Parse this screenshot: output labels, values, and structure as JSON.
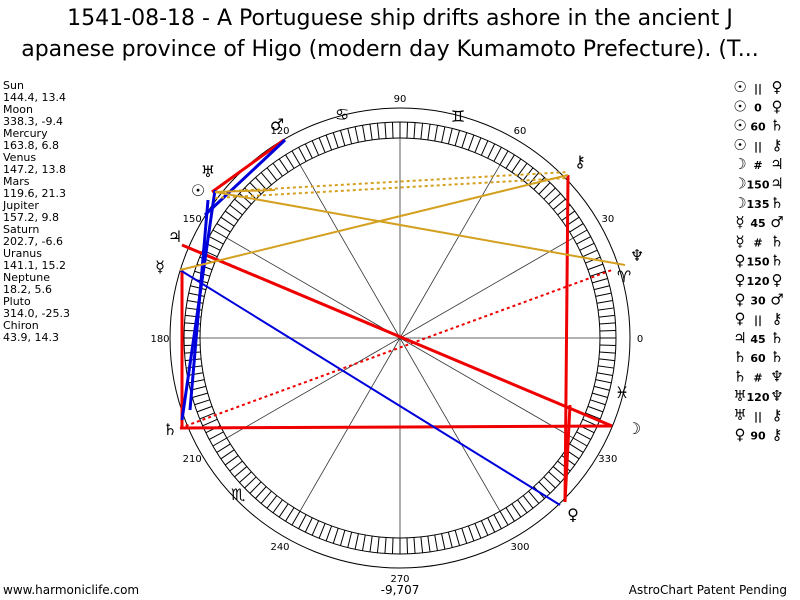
{
  "header": {
    "title_line1": "1541-08-18 - A Portuguese ship drifts ashore in the ancient J",
    "title_line2": "apanese province of Higo (modern day Kumamoto Prefecture). (T..."
  },
  "planets": [
    {
      "name": "Sun",
      "position": "144.4, 13.4"
    },
    {
      "name": "Moon",
      "position": "338.3, -9.4"
    },
    {
      "name": "Mercury",
      "position": "163.8, 6.8"
    },
    {
      "name": "Venus",
      "position": "147.2, 13.8"
    },
    {
      "name": "Mars",
      "position": "119.6, 21.3"
    },
    {
      "name": "Jupiter",
      "position": "157.2, 9.8"
    },
    {
      "name": "Saturn",
      "position": "202.7, -6.6"
    },
    {
      "name": "Uranus",
      "position": "141.1, 15.2"
    },
    {
      "name": "Neptune",
      "position": "18.2, 5.6"
    },
    {
      "name": "Pluto",
      "position": "314.0, -25.3"
    },
    {
      "name": "Chiron",
      "position": "43.9, 14.3"
    }
  ],
  "wheel": {
    "degree_labels": [
      "0",
      "30",
      "60",
      "90",
      "120",
      "150",
      "180",
      "210",
      "240",
      "270",
      "300",
      "330"
    ],
    "signs": [
      "♋",
      "♊",
      "♈",
      "♓",
      "♏"
    ],
    "planet_glyphs": [
      "♂",
      "♅",
      "☉",
      "♃",
      "☿",
      "♄",
      "☽",
      "♀",
      "♆",
      "⚷"
    ]
  },
  "aspects": [
    [
      "☉",
      "||",
      "♀"
    ],
    [
      "☉",
      "0",
      "♀"
    ],
    [
      "☉",
      "60",
      "♄"
    ],
    [
      "☉",
      "||",
      "⚷"
    ],
    [
      "☽",
      "#",
      "♃"
    ],
    [
      "☽",
      "150",
      "♃"
    ],
    [
      "☽",
      "135",
      "♄"
    ],
    [
      "☿",
      "45",
      "♂"
    ],
    [
      "☿",
      "#",
      "♄"
    ],
    [
      "♀",
      "150",
      "♄"
    ],
    [
      "♀",
      "120",
      "♀"
    ],
    [
      "♀",
      "30",
      "♂"
    ],
    [
      "♀",
      "||",
      "⚷"
    ],
    [
      "♃",
      "45",
      "♄"
    ],
    [
      "♄",
      "60",
      "♄"
    ],
    [
      "♄",
      "#",
      "♆"
    ],
    [
      "♅",
      "120",
      "♆"
    ],
    [
      "♅",
      "||",
      "⚷"
    ],
    [
      "♀",
      "90",
      "⚷"
    ]
  ],
  "footer": {
    "site": "www.harmoniclife.com",
    "number": "-9,707",
    "note": "AstroChart Patent Pending"
  }
}
